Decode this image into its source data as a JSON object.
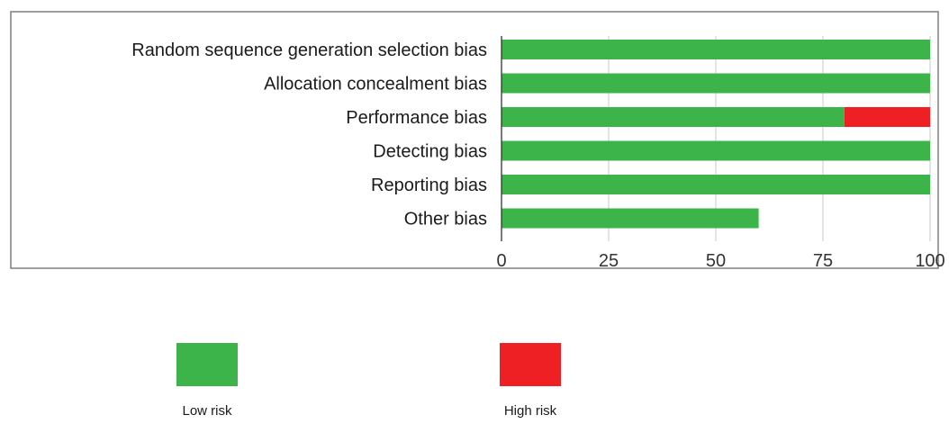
{
  "chart_data": {
    "type": "bar",
    "orientation": "horizontal",
    "stacked": true,
    "categories": [
      "Random sequence generation selection bias",
      "Allocation concealment bias",
      "Performance bias",
      "Detecting bias",
      "Reporting bias",
      "Other bias"
    ],
    "series": [
      {
        "name": "Low risk",
        "color": "#3cb44a",
        "values": [
          100,
          100,
          80,
          100,
          100,
          60
        ]
      },
      {
        "name": "High risk",
        "color": "#ee2024",
        "values": [
          0,
          0,
          20,
          0,
          0,
          0
        ]
      }
    ],
    "xlim": [
      0,
      100
    ],
    "xticks": [
      "0",
      "25",
      "50",
      "75",
      "100"
    ],
    "grid": true,
    "legend_position": "bottom"
  }
}
